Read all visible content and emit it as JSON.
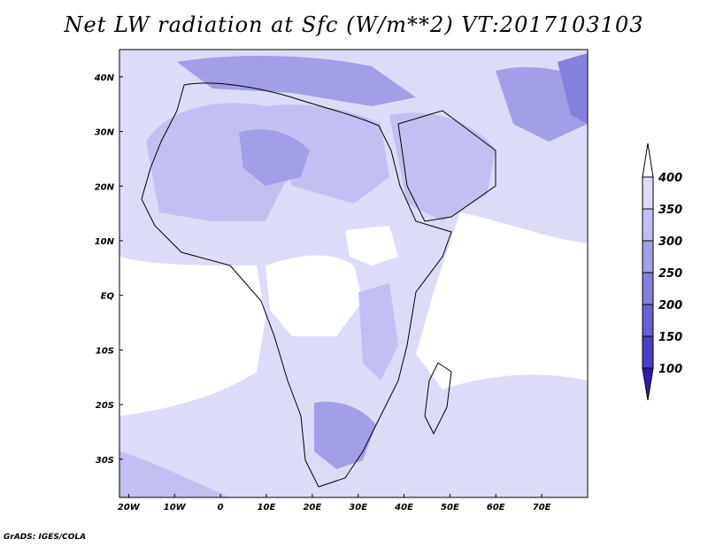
{
  "title": "Net LW radiation at Sfc (W/m**2) VT:2017103103",
  "credit": "GrADS: IGES/COLA",
  "map": {
    "lon_labels": [
      "20W",
      "10W",
      "0",
      "10E",
      "20E",
      "30E",
      "40E",
      "50E",
      "60E",
      "70E"
    ],
    "lat_labels": [
      "40N",
      "30N",
      "20N",
      "10N",
      "EQ",
      "10S",
      "20S",
      "30S"
    ],
    "lon_range": [
      -22,
      80
    ],
    "lat_range": [
      -37,
      45
    ]
  },
  "colorbar": {
    "levels": [
      "400",
      "350",
      "300",
      "250",
      "200",
      "150",
      "100"
    ],
    "colors": [
      "#ffffff",
      "#dcdcf8",
      "#c2c0f2",
      "#a29ee8",
      "#8580de",
      "#6760d2",
      "#4a3fc4",
      "#3217b2"
    ]
  }
}
